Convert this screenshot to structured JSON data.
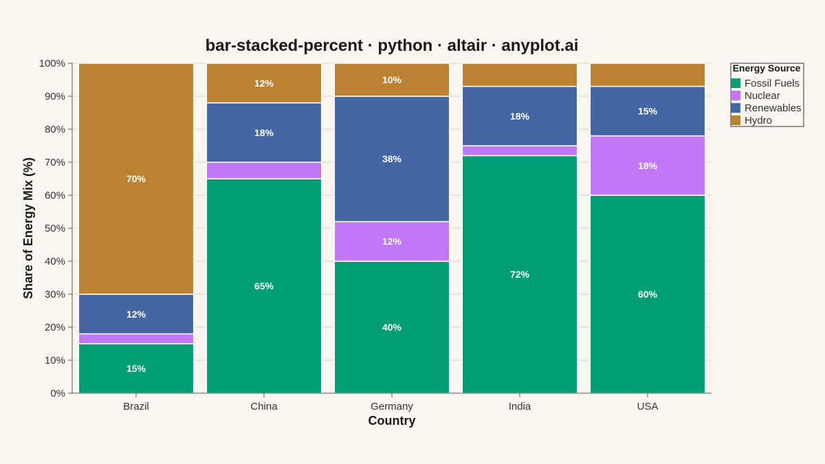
{
  "chart_data": {
    "type": "bar",
    "stacked": "percent",
    "title": "bar-stacked-percent · python · altair · anyplot.ai",
    "xlabel": "Country",
    "ylabel": "Share of Energy Mix (%)",
    "ylim": [
      0,
      100
    ],
    "yticks": [
      "0%",
      "10%",
      "20%",
      "30%",
      "40%",
      "50%",
      "60%",
      "70%",
      "80%",
      "90%",
      "100%"
    ],
    "grid": true,
    "legend": {
      "title": "Energy Source",
      "position": "right"
    },
    "categories": [
      "Brazil",
      "China",
      "Germany",
      "India",
      "USA"
    ],
    "series": [
      {
        "name": "Fossil Fuels",
        "color": "#009e73",
        "values": [
          15,
          65,
          40,
          72,
          60
        ],
        "labels": [
          "15%",
          "65%",
          "40%",
          "72%",
          "60%"
        ]
      },
      {
        "name": "Nuclear",
        "color": "#c178f7",
        "values": [
          3,
          5,
          12,
          3,
          18
        ],
        "labels": [
          "",
          "",
          "12%",
          "",
          "18%"
        ]
      },
      {
        "name": "Renewables",
        "color": "#4466a3",
        "values": [
          12,
          18,
          38,
          18,
          15
        ],
        "labels": [
          "12%",
          "18%",
          "38%",
          "18%",
          "15%"
        ]
      },
      {
        "name": "Hydro",
        "color": "#bc8233",
        "values": [
          70,
          12,
          10,
          7,
          7
        ],
        "labels": [
          "70%",
          "12%",
          "10%",
          "",
          ""
        ]
      }
    ]
  }
}
